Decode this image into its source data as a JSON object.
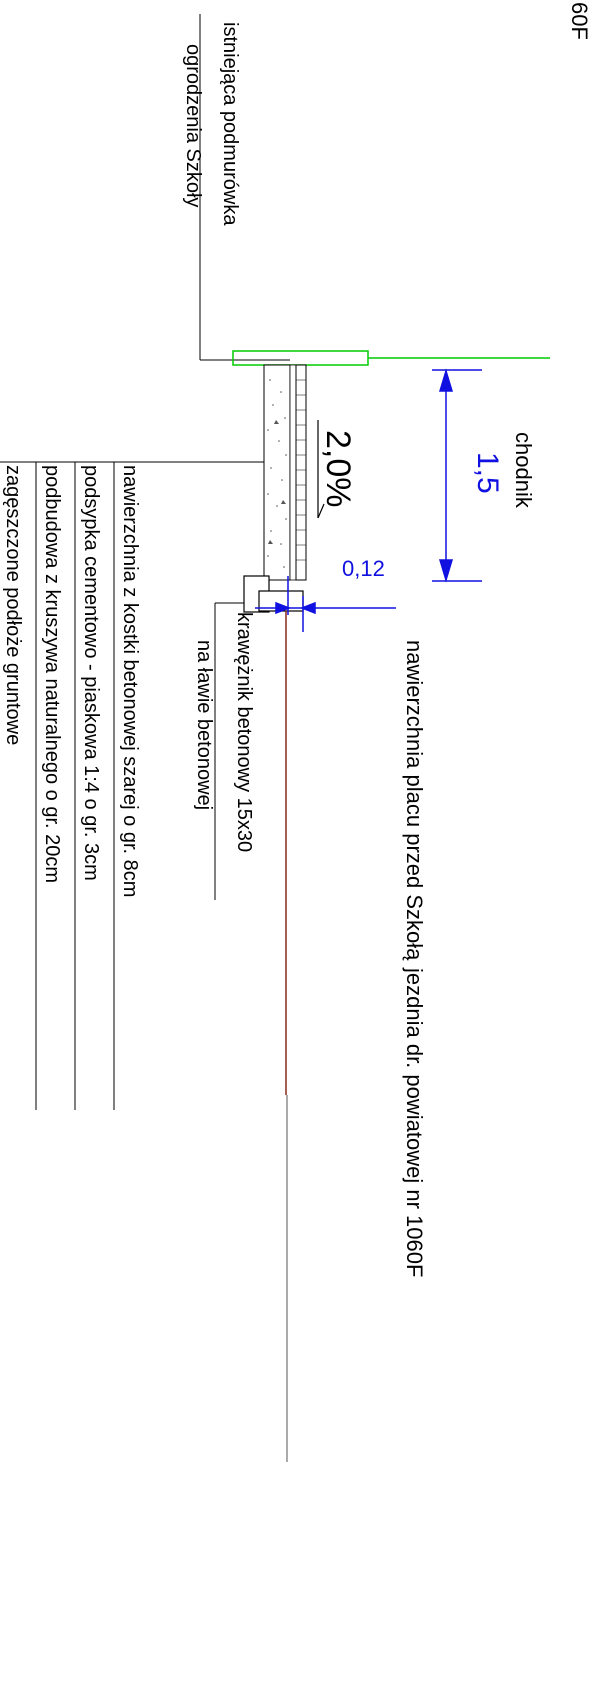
{
  "labels": {
    "road_code_fragment": "60F",
    "existing_wall_line1": "istniejąca podmurówka",
    "existing_wall_line2": "ogrodzenia Szkoły",
    "sidewalk": "chodnik",
    "sidewalk_width": "1,5",
    "slope": "2,0%",
    "offset": "0,12",
    "square_surface": "nawierzchnia placu przed Szkołą",
    "road": "jezdnia dr. powiatowej nr 1060F",
    "curb_line1": "krawężnik betonowy 15x30",
    "curb_line2": "na ławie betonowej",
    "layer_1": "nawierzchnia z kostki betonowej szarej o gr. 8cm",
    "layer_2": "podsypka cementowo - piaskowa 1:4 o gr. 3cm",
    "layer_3": "podbudowa z kruszywa naturalnego o gr. 20cm",
    "layer_4": "zagęszczone podłoże gruntowe"
  },
  "colors": {
    "lines": "#000000",
    "dimension": "#1010e0",
    "fence_outline": "#00cc00",
    "road_surface": "#8b2a1a",
    "gray_line": "#555555"
  }
}
